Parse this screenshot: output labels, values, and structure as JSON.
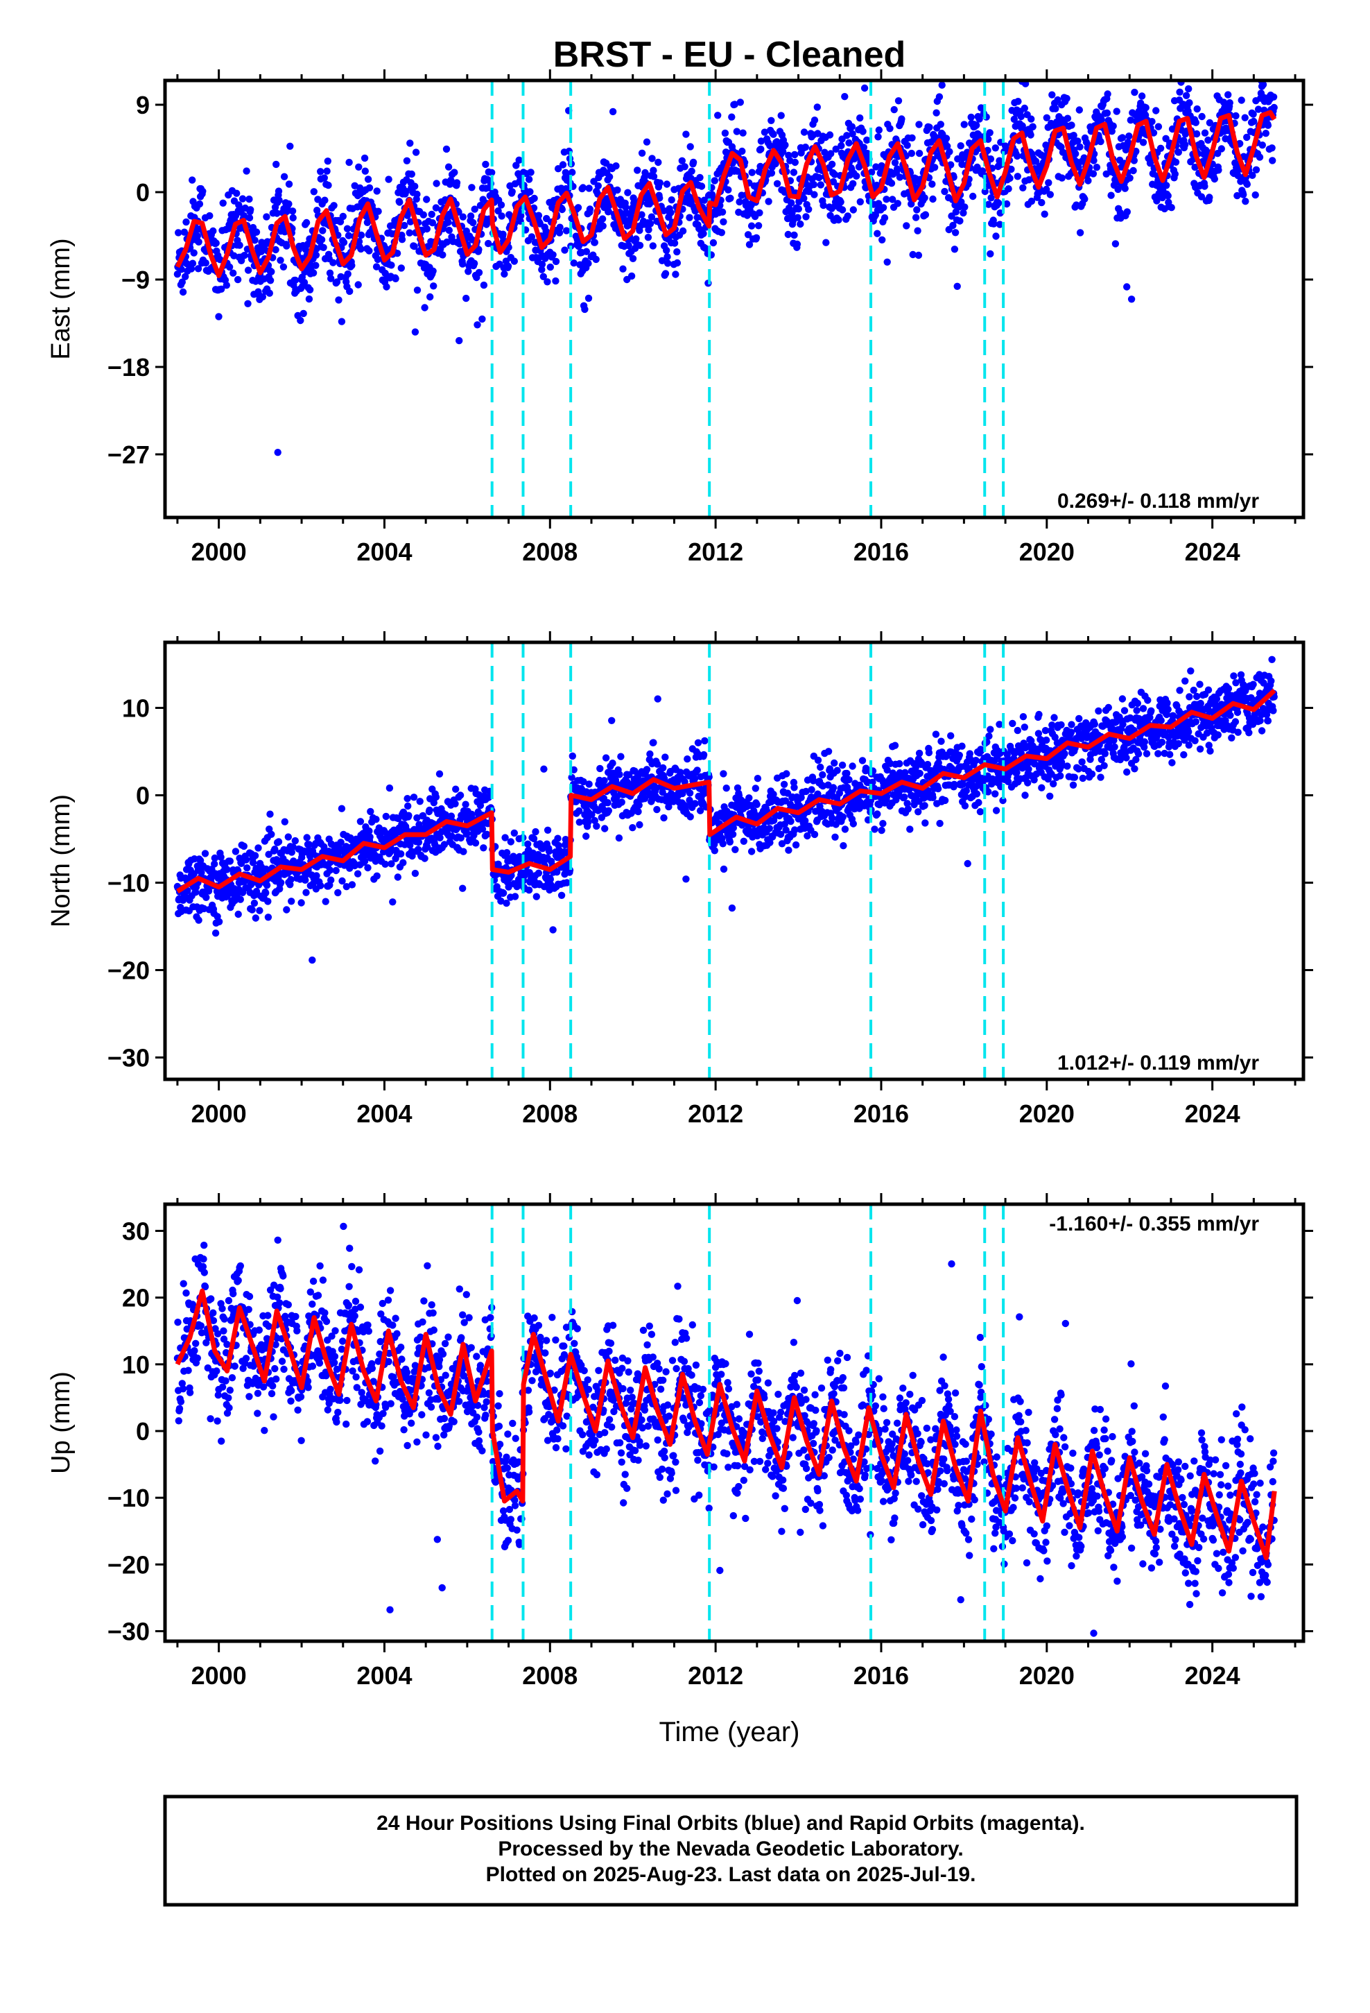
{
  "title": "BRST  - EU - Cleaned",
  "xlabel": "Time (year)",
  "footer": {
    "line1": "24 Hour Positions Using Final Orbits (blue) and Rapid Orbits (magenta).",
    "line2": "Processed by the Nevada Geodetic Laboratory.",
    "line3": "Plotted on 2025-Aug-23. Last data on 2025-Jul-19."
  },
  "colors": {
    "data": "#0000ff",
    "model": "#ff0000",
    "steps": "#00e5ee",
    "frame": "#000000"
  },
  "chart_data": [
    {
      "type": "scatter",
      "component": "East",
      "ylabel": "East (mm)",
      "ylim": [
        -33.5,
        11.5
      ],
      "xlim": [
        1998.7,
        2026.2
      ],
      "yticks": [
        9,
        0,
        -9,
        -18,
        -27
      ],
      "ytick_labels": [
        "9",
        "0",
        "−9",
        "−18",
        "−27"
      ],
      "xticks": [
        2000,
        2004,
        2008,
        2012,
        2016,
        2020,
        2024
      ],
      "xtick_labels": [
        "2000",
        "2004",
        "2008",
        "2012",
        "2016",
        "2020",
        "2024"
      ],
      "rate_label": "0.269+/- 0.118 mm/yr",
      "rate_position": "bottom-right",
      "step_epochs": [
        2006.6,
        2007.35,
        2008.5,
        2011.85,
        2015.75,
        2018.5,
        2018.95
      ],
      "series": [
        {
          "role": "model",
          "x": [
            1999.0,
            1999.2,
            1999.4,
            1999.6,
            1999.8,
            2000.0,
            2000.2,
            2000.4,
            2000.6,
            2000.8,
            2001.0,
            2001.2,
            2001.4,
            2001.6,
            2001.8,
            2002.0,
            2002.2,
            2002.4,
            2002.6,
            2002.8,
            2003.0,
            2003.2,
            2003.4,
            2003.6,
            2003.8,
            2004.0,
            2004.2,
            2004.4,
            2004.6,
            2004.8,
            2005.0,
            2005.2,
            2005.4,
            2005.6,
            2005.8,
            2006.0,
            2006.2,
            2006.4,
            2006.59,
            2006.61,
            2006.8,
            2007.0,
            2007.2,
            2007.4,
            2007.6,
            2007.8,
            2008.0,
            2008.2,
            2008.4,
            2008.6,
            2008.8,
            2009.0,
            2009.2,
            2009.4,
            2009.6,
            2009.8,
            2010.0,
            2010.2,
            2010.4,
            2010.6,
            2010.8,
            2011.0,
            2011.2,
            2011.4,
            2011.6,
            2011.84,
            2011.86,
            2012.0,
            2012.2,
            2012.4,
            2012.6,
            2012.8,
            2013.0,
            2013.2,
            2013.4,
            2013.6,
            2013.8,
            2014.0,
            2014.2,
            2014.4,
            2014.6,
            2014.8,
            2015.0,
            2015.2,
            2015.4,
            2015.6,
            2015.8,
            2016.0,
            2016.2,
            2016.4,
            2016.6,
            2016.8,
            2017.0,
            2017.2,
            2017.4,
            2017.6,
            2017.8,
            2018.0,
            2018.2,
            2018.4,
            2018.6,
            2018.8,
            2019.0,
            2019.2,
            2019.4,
            2019.6,
            2019.8,
            2020.0,
            2020.2,
            2020.4,
            2020.6,
            2020.8,
            2021.0,
            2021.2,
            2021.4,
            2021.6,
            2021.8,
            2022.0,
            2022.2,
            2022.4,
            2022.6,
            2022.8,
            2023.0,
            2023.2,
            2023.4,
            2023.6,
            2023.8,
            2024.0,
            2024.2,
            2024.4,
            2024.6,
            2024.8,
            2025.0,
            2025.2,
            2025.4,
            2025.5
          ],
          "y": [
            -7.7,
            -5.9,
            -3.0,
            -3.2,
            -6.4,
            -8.6,
            -6.4,
            -3.3,
            -2.9,
            -5.9,
            -8.3,
            -6.7,
            -3.2,
            -2.5,
            -5.7,
            -7.9,
            -6.6,
            -3.0,
            -1.9,
            -4.9,
            -7.4,
            -6.5,
            -2.8,
            -1.2,
            -4.2,
            -7.0,
            -6.2,
            -2.6,
            -0.8,
            -3.8,
            -6.5,
            -5.9,
            -2.4,
            -0.7,
            -3.6,
            -6.4,
            -5.5,
            -1.8,
            -0.8,
            -3.3,
            -6.2,
            -4.9,
            -1.5,
            -0.5,
            -2.8,
            -5.7,
            -4.8,
            -1.1,
            -0.1,
            -2.4,
            -5.1,
            -4.4,
            -0.7,
            0.5,
            -2.0,
            -4.8,
            -4.0,
            -0.3,
            0.9,
            -1.6,
            -4.4,
            -3.7,
            0.1,
            1.0,
            -1.6,
            -3.5,
            -1.1,
            -1.3,
            1.7,
            4.0,
            3.3,
            -0.5,
            -0.9,
            2.4,
            4.3,
            3.0,
            -0.4,
            -0.5,
            2.9,
            4.7,
            2.9,
            -0.3,
            0.1,
            3.4,
            5.0,
            2.7,
            -0.5,
            0.4,
            3.7,
            5.0,
            2.4,
            -0.8,
            0.6,
            4.1,
            5.3,
            2.3,
            -0.9,
            0.9,
            4.5,
            5.3,
            2.1,
            -0.5,
            2.1,
            5.5,
            6.1,
            2.7,
            0.5,
            2.7,
            6.3,
            6.6,
            3.0,
            0.8,
            3.2,
            6.6,
            7.0,
            3.3,
            1.1,
            3.5,
            6.9,
            7.3,
            3.6,
            1.2,
            3.8,
            7.3,
            7.6,
            3.8,
            1.5,
            4.2,
            7.6,
            7.9,
            4.1,
            1.8,
            4.6,
            7.9,
            8.2,
            7.5
          ]
        }
      ]
    },
    {
      "type": "scatter",
      "component": "North",
      "ylabel": "North (mm)",
      "ylim": [
        -32.5,
        17.5
      ],
      "xlim": [
        1998.7,
        2026.2
      ],
      "yticks": [
        10,
        0,
        -10,
        -20,
        -30
      ],
      "ytick_labels": [
        "10",
        "0",
        "−10",
        "−20",
        "−30"
      ],
      "xticks": [
        2000,
        2004,
        2008,
        2012,
        2016,
        2020,
        2024
      ],
      "xtick_labels": [
        "2000",
        "2004",
        "2008",
        "2012",
        "2016",
        "2020",
        "2024"
      ],
      "rate_label": "1.012+/- 0.119 mm/yr",
      "rate_position": "bottom-right",
      "step_epochs": [
        2006.6,
        2007.35,
        2008.5,
        2011.85,
        2015.75,
        2018.5,
        2018.95
      ],
      "series": [
        {
          "role": "model",
          "x": [
            1999.0,
            1999.5,
            2000.0,
            2000.5,
            2001.0,
            2001.5,
            2002.0,
            2002.5,
            2003.0,
            2003.5,
            2004.0,
            2004.5,
            2005.0,
            2005.5,
            2006.0,
            2006.59,
            2006.61,
            2007.0,
            2007.5,
            2008.0,
            2008.49,
            2008.51,
            2009.0,
            2009.5,
            2010.0,
            2010.5,
            2011.0,
            2011.84,
            2011.86,
            2012.5,
            2013.0,
            2013.5,
            2014.0,
            2014.5,
            2015.0,
            2015.5,
            2016.0,
            2016.5,
            2017.0,
            2017.5,
            2018.0,
            2018.5,
            2019.0,
            2019.5,
            2020.0,
            2020.5,
            2021.0,
            2021.5,
            2022.0,
            2022.5,
            2023.0,
            2023.5,
            2024.0,
            2024.5,
            2025.0,
            2025.5
          ],
          "y": [
            -11.0,
            -9.5,
            -10.5,
            -9.0,
            -9.8,
            -8.2,
            -8.5,
            -7.0,
            -7.5,
            -5.5,
            -6.0,
            -4.5,
            -4.5,
            -3.0,
            -3.5,
            -2.0,
            -8.5,
            -8.8,
            -7.8,
            -8.5,
            -7.0,
            0.0,
            -0.5,
            1.0,
            0.2,
            1.8,
            0.8,
            1.5,
            -4.5,
            -2.5,
            -3.3,
            -1.5,
            -2.0,
            -0.5,
            -1.0,
            0.5,
            0.2,
            1.5,
            0.8,
            2.5,
            2.0,
            3.5,
            3.0,
            4.5,
            4.2,
            6.0,
            5.5,
            7.0,
            6.5,
            8.0,
            7.8,
            9.5,
            8.8,
            10.5,
            9.8,
            12.0
          ]
        }
      ]
    },
    {
      "type": "scatter",
      "component": "Up",
      "ylabel": "Up (mm)",
      "ylim": [
        -31.5,
        34.0
      ],
      "xlim": [
        1998.7,
        2026.2
      ],
      "yticks": [
        30,
        20,
        10,
        0,
        -10,
        -20,
        -30
      ],
      "ytick_labels": [
        "30",
        "20",
        "10",
        "0",
        "−10",
        "−20",
        "−30"
      ],
      "xticks": [
        2000,
        2004,
        2008,
        2012,
        2016,
        2020,
        2024
      ],
      "xtick_labels": [
        "2000",
        "2004",
        "2008",
        "2012",
        "2016",
        "2020",
        "2024"
      ],
      "rate_label": "-1.160+/- 0.355 mm/yr",
      "rate_position": "top-right",
      "step_epochs": [
        2006.6,
        2007.35,
        2008.5,
        2011.85,
        2015.75,
        2018.5,
        2018.95
      ],
      "series": [
        {
          "role": "model",
          "x": [
            1999.0,
            1999.3,
            1999.6,
            1999.9,
            2000.2,
            2000.5,
            2000.8,
            2001.1,
            2001.4,
            2001.7,
            2002.0,
            2002.3,
            2002.6,
            2002.9,
            2003.2,
            2003.5,
            2003.8,
            2004.1,
            2004.4,
            2004.7,
            2005.0,
            2005.3,
            2005.6,
            2005.9,
            2006.2,
            2006.59,
            2006.61,
            2006.9,
            2007.2,
            2007.34,
            2007.36,
            2007.6,
            2007.9,
            2008.2,
            2008.5,
            2008.8,
            2009.1,
            2009.4,
            2009.7,
            2010.0,
            2010.3,
            2010.6,
            2010.9,
            2011.2,
            2011.5,
            2011.8,
            2012.1,
            2012.4,
            2012.7,
            2013.0,
            2013.3,
            2013.6,
            2013.9,
            2014.2,
            2014.5,
            2014.8,
            2015.1,
            2015.4,
            2015.7,
            2016.0,
            2016.3,
            2016.6,
            2016.9,
            2017.2,
            2017.5,
            2017.8,
            2018.1,
            2018.4,
            2018.7,
            2019.0,
            2019.3,
            2019.6,
            2019.9,
            2020.2,
            2020.5,
            2020.8,
            2021.1,
            2021.4,
            2021.7,
            2022.0,
            2022.3,
            2022.6,
            2022.9,
            2023.2,
            2023.5,
            2023.8,
            2024.1,
            2024.4,
            2024.7,
            2025.0,
            2025.3,
            2025.5
          ],
          "y": [
            10.0,
            14.0,
            21.0,
            12.0,
            9.0,
            18.5,
            13.0,
            7.5,
            18.0,
            12.5,
            6.5,
            17.0,
            10.5,
            5.5,
            16.0,
            9.0,
            4.5,
            15.0,
            7.5,
            3.5,
            14.5,
            6.5,
            2.5,
            13.0,
            4.5,
            12.0,
            0.0,
            -10.5,
            -9.0,
            -10.5,
            7.0,
            14.5,
            8.0,
            1.5,
            11.5,
            5.5,
            0.0,
            10.5,
            4.0,
            -1.0,
            9.5,
            3.0,
            -2.0,
            8.5,
            1.5,
            -3.5,
            7.0,
            0.5,
            -4.5,
            6.0,
            -0.5,
            -5.5,
            5.0,
            -1.5,
            -6.5,
            4.5,
            -2.5,
            -7.5,
            3.5,
            -3.5,
            -8.5,
            2.5,
            -4.5,
            -9.5,
            1.5,
            -5.5,
            -10.5,
            3.0,
            -6.5,
            -12.0,
            -1.0,
            -7.5,
            -13.5,
            -2.0,
            -8.5,
            -14.5,
            -3.0,
            -9.5,
            -15.0,
            -4.0,
            -10.5,
            -15.5,
            -5.0,
            -11.5,
            -17.0,
            -6.5,
            -12.5,
            -18.0,
            -7.5,
            -13.5,
            -19.0,
            -9.0
          ]
        }
      ]
    }
  ]
}
